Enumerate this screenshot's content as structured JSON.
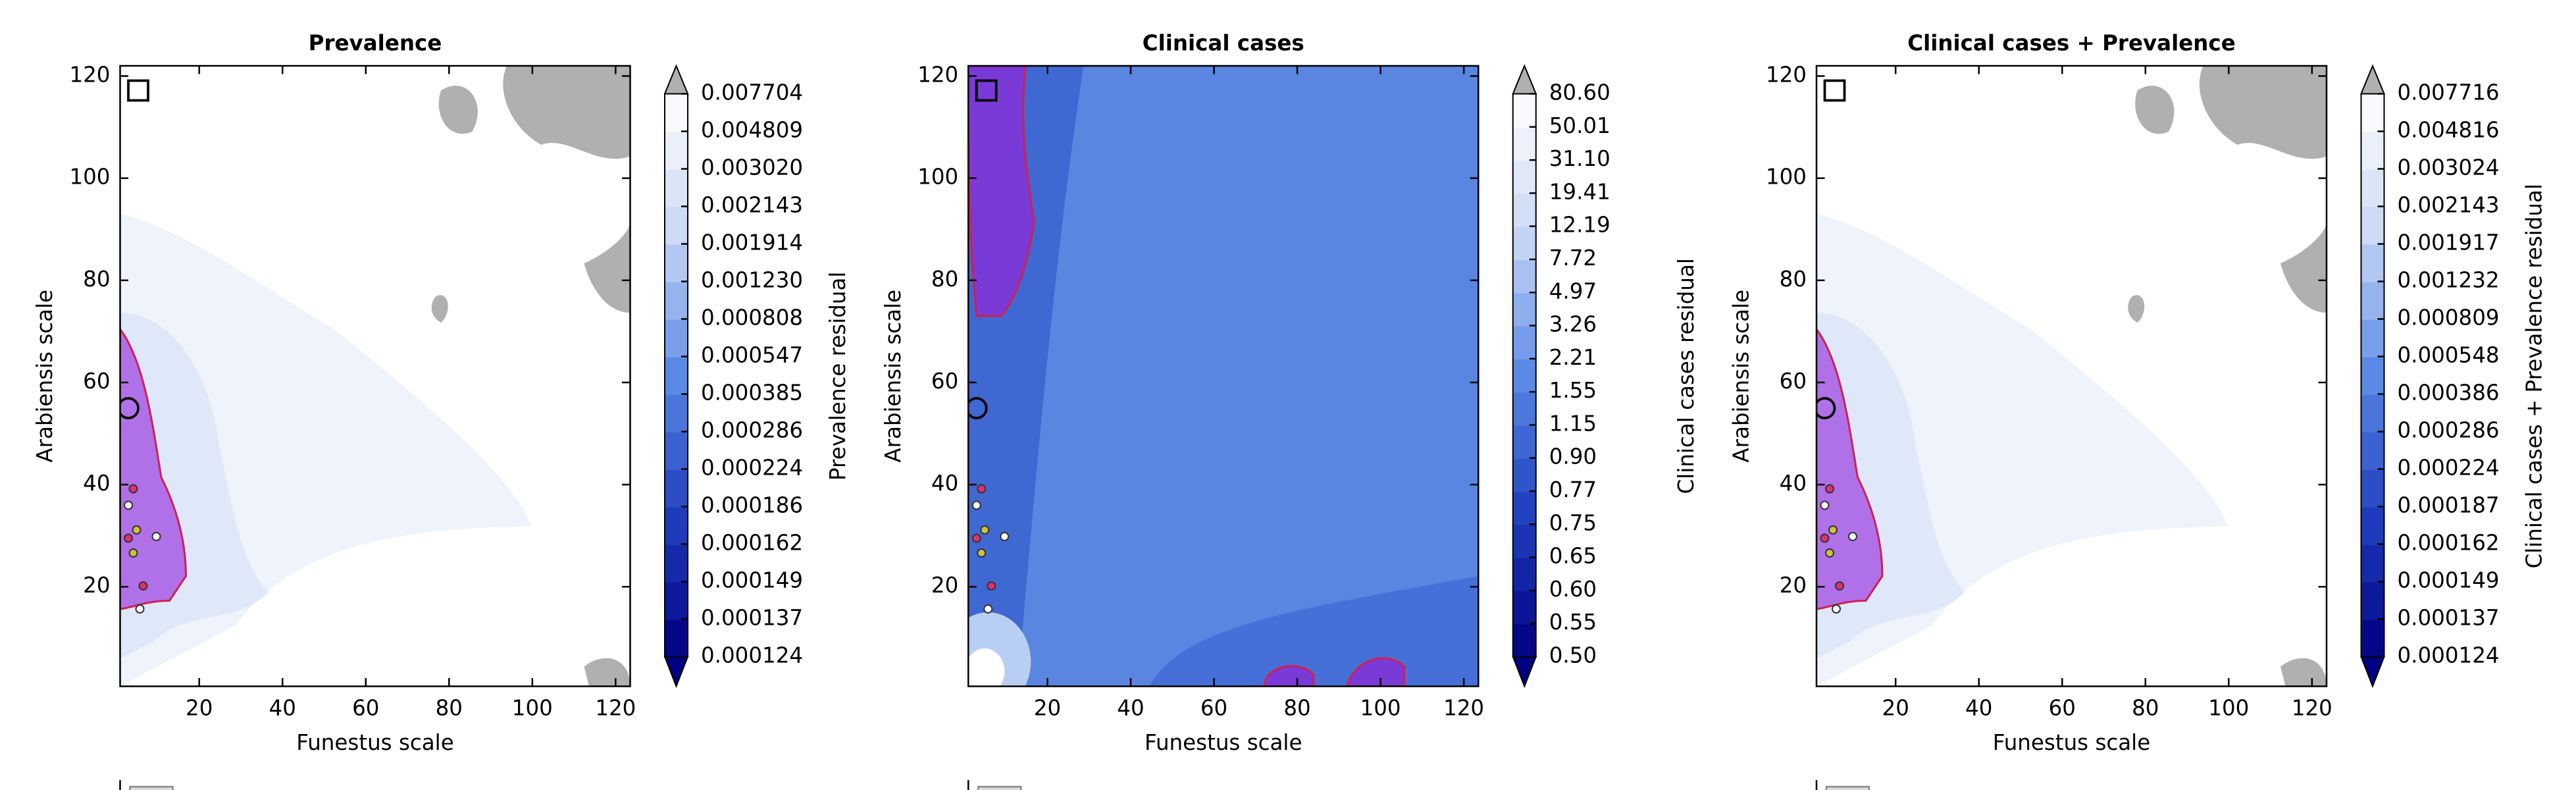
{
  "chart_data": [
    {
      "type": "contour",
      "title": "Prevalence",
      "xlabel": "Funestus scale",
      "ylabel": "Arabiensis scale",
      "xlim": [
        1,
        123.5
      ],
      "ylim": [
        0.5,
        122
      ],
      "xticks": [
        20,
        40,
        60,
        80,
        100,
        120
      ],
      "yticks": [
        20,
        40,
        60,
        80,
        100,
        120
      ],
      "colorbar": {
        "label": "Prevalence residual",
        "ticks": [
          0.000124,
          0.000137,
          0.000149,
          0.000162,
          0.000186,
          0.000224,
          0.000286,
          0.000385,
          0.000547,
          0.000808,
          {
            "value": 0.00123,
            "label": "0.001230"
          },
          0.001914,
          0.002143,
          {
            "value": 0.00302,
            "label": "0.003020"
          },
          0.004809,
          0.007704
        ],
        "colors": [
          "#000080",
          "#1f3fbf",
          "#5a8ae6",
          "#c8d8f5",
          "#ffffff"
        ],
        "over_color": "#b0b0b0",
        "under_color": "#000080"
      }
    },
    {
      "type": "contour",
      "title": "Clinical cases",
      "xlabel": "Funestus scale",
      "ylabel": "Arabiensis scale",
      "xlim": [
        1,
        123.5
      ],
      "ylim": [
        0.5,
        122
      ],
      "xticks": [
        20,
        40,
        60,
        80,
        100,
        120
      ],
      "yticks": [
        20,
        40,
        60,
        80,
        100,
        120
      ],
      "colorbar": {
        "label": "Clinical cases residual",
        "ticks": [
          {
            "value": 0.5,
            "label": "0.50"
          },
          0.55,
          {
            "value": 0.6,
            "label": "0.60"
          },
          0.65,
          0.75,
          0.77,
          {
            "value": 0.9,
            "label": "0.90"
          },
          1.15,
          1.55,
          2.21,
          3.26,
          4.97,
          7.72,
          12.19,
          19.41,
          {
            "value": 31.1,
            "label": "31.10"
          },
          50.01,
          {
            "value": 80.6,
            "label": "80.60"
          }
        ],
        "colors": [
          "#000080",
          "#1f3fbf",
          "#5a8ae6",
          "#c8d8f5",
          "#ffffff"
        ],
        "over_color": "#b0b0b0",
        "under_color": "#000080"
      }
    },
    {
      "type": "contour",
      "title": "Clinical cases + Prevalence",
      "xlabel": "Funestus scale",
      "ylabel": "Arabiensis scale",
      "xlim": [
        1,
        123.5
      ],
      "ylim": [
        0.5,
        122
      ],
      "xticks": [
        20,
        40,
        60,
        80,
        100,
        120
      ],
      "yticks": [
        20,
        40,
        60,
        80,
        100,
        120
      ],
      "colorbar": {
        "label": "Clinical cases + Prevalence residual",
        "ticks": [
          0.000124,
          0.000137,
          0.000149,
          0.000162,
          0.000187,
          0.000224,
          0.000286,
          0.000386,
          0.000548,
          0.000809,
          0.001232,
          0.001917,
          0.002143,
          0.003024,
          0.004816,
          0.007716
        ],
        "colors": [
          "#000080",
          "#1f3fbf",
          "#5a8ae6",
          "#c8d8f5",
          "#ffffff"
        ],
        "over_color": "#b0b0b0",
        "under_color": "#000080"
      }
    }
  ]
}
